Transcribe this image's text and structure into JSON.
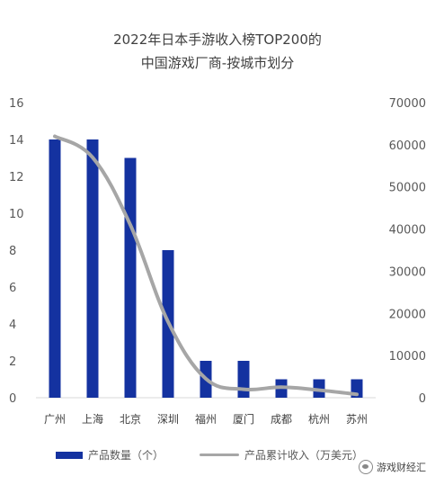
{
  "chart_data": {
    "type": "bar",
    "title": "2022年日本手游收入榜TOP200的",
    "subtitle": "中国游戏厂商-按城市划分",
    "categories": [
      "广州",
      "上海",
      "北京",
      "深圳",
      "福州",
      "厦门",
      "成都",
      "杭州",
      "苏州"
    ],
    "series": [
      {
        "name": "产品数量（个）",
        "type": "bar",
        "axis": "left",
        "color": "#1432a0",
        "values": [
          14,
          14,
          13,
          8,
          2,
          2,
          1,
          1,
          1
        ]
      },
      {
        "name": "产品累计收入（万美元）",
        "type": "line",
        "axis": "right",
        "color": "#a6a6a6",
        "values": [
          62000,
          57000,
          41000,
          18000,
          4500,
          2000,
          2500,
          1800,
          800
        ]
      }
    ],
    "left_axis": {
      "min": 0,
      "max": 16,
      "ticks": [
        "0",
        "2",
        "4",
        "6",
        "8",
        "10",
        "12",
        "14",
        "16"
      ]
    },
    "right_axis": {
      "min": 0,
      "max": 70000,
      "ticks": [
        "0",
        "10000",
        "20000",
        "30000",
        "40000",
        "50000",
        "60000",
        "70000"
      ]
    },
    "grid": false,
    "legend_position": "bottom"
  },
  "watermark": {
    "text": "游戏财经汇"
  }
}
